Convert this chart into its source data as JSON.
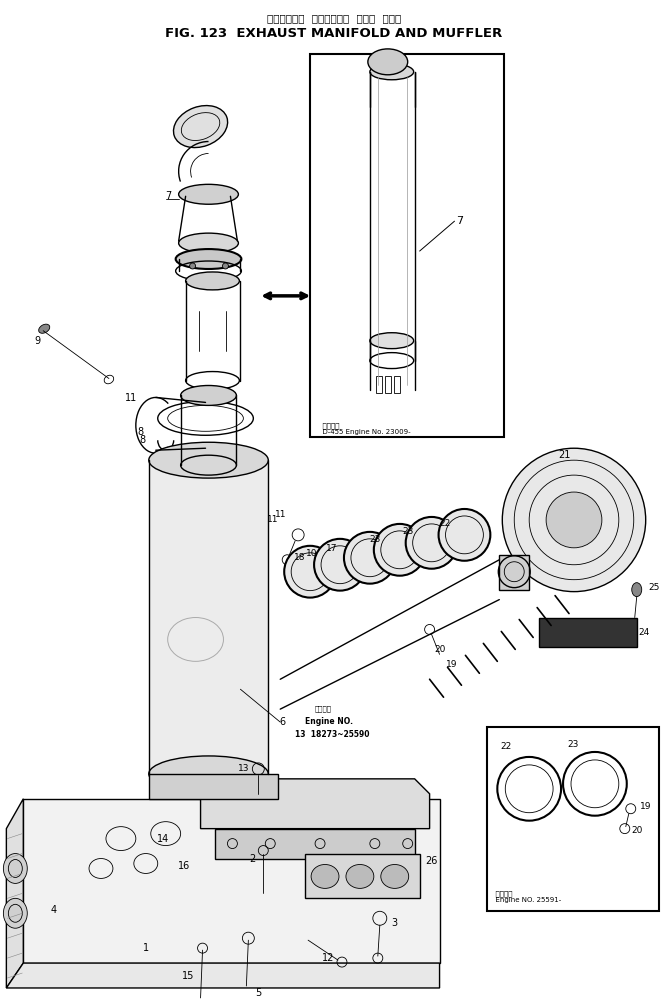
{
  "title_japanese": "エキゾースト  マニホールド  および  マフラ",
  "title_english": "FIG. 123  EXHAUST MANIFOLD AND MUFFLER",
  "background_color": "#ffffff",
  "line_color": "#000000",
  "fig_width": 6.68,
  "fig_height": 10.05,
  "dpi": 100,
  "inset1_note": "D-455 Engine No. 23009-",
  "inset2_note": "Engine NO. 25591-",
  "engine_note1": "Engine NO.",
  "engine_note2": "13  18273~25590"
}
